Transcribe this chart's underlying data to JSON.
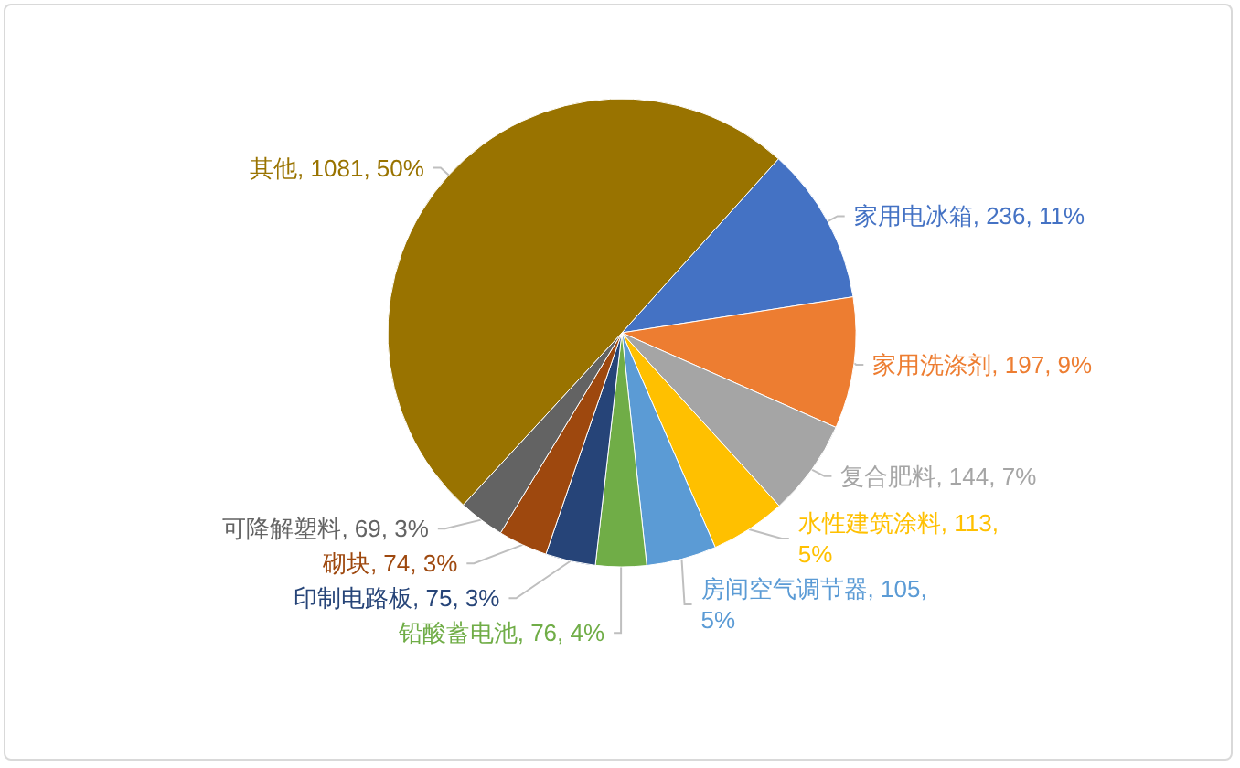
{
  "chart_data": {
    "type": "pie",
    "categories": [
      "家用电冰箱",
      "家用洗涤剂",
      "复合肥料",
      "水性建筑涂料",
      "房间空气调节器",
      "铅酸蓄电池",
      "印制电路板",
      "砌块",
      "可降解塑料",
      "其他"
    ],
    "values": [
      236,
      197,
      144,
      113,
      105,
      76,
      75,
      74,
      69,
      1081
    ],
    "value_labels": [
      "236, 11%",
      "197, 9%",
      "144, 7%",
      "113, 5%",
      "105, 5%",
      "76, 4%",
      "75, 3%",
      "74, 3%",
      "69, 3%",
      "1081, 50%"
    ],
    "colors": [
      "#4472c4",
      "#ed7d31",
      "#a5a5a5",
      "#ffc000",
      "#5b9bd5",
      "#70ad47",
      "#264478",
      "#9e480e",
      "#636363",
      "#997300"
    ],
    "legend": false
  }
}
